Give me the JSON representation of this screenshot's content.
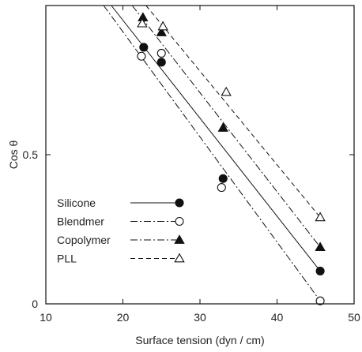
{
  "chart_data": {
    "type": "scatter",
    "title": "",
    "xlabel": "Surface tension (dyn / cm)",
    "ylabel": "Cos θ",
    "xlim": [
      10,
      50
    ],
    "ylim": [
      0,
      1.0
    ],
    "xticks": [
      10,
      20,
      30,
      40,
      50
    ],
    "yticks": [
      0,
      0.5
    ],
    "ytick_labels": [
      "0",
      "0.5"
    ],
    "grid": false,
    "legend_position": "lower-left",
    "series": [
      {
        "name": "Silicone",
        "marker": "filled-circle",
        "line_style": "solid",
        "points": [
          [
            22.7,
            0.86
          ],
          [
            25.0,
            0.81
          ],
          [
            33.0,
            0.42
          ],
          [
            45.6,
            0.11
          ]
        ],
        "fit_line": [
          [
            18.5,
            1.0
          ],
          [
            45.6,
            0.11
          ]
        ]
      },
      {
        "name": "Blendmer",
        "marker": "open-circle",
        "line_style": "dash-dot",
        "points": [
          [
            22.4,
            0.83
          ],
          [
            25.0,
            0.84
          ],
          [
            32.8,
            0.39
          ],
          [
            45.6,
            0.01
          ]
        ],
        "fit_line": [
          [
            17.5,
            1.0
          ],
          [
            45.6,
            0.01
          ]
        ]
      },
      {
        "name": "Copolymer",
        "marker": "filled-triangle",
        "line_style": "dash-dot",
        "points": [
          [
            22.6,
            0.96
          ],
          [
            25.0,
            0.91
          ],
          [
            33.0,
            0.59
          ],
          [
            45.6,
            0.19
          ]
        ],
        "fit_line": [
          [
            21.2,
            1.0
          ],
          [
            45.6,
            0.19
          ]
        ]
      },
      {
        "name": "PLL",
        "marker": "open-triangle",
        "line_style": "dashed",
        "points": [
          [
            22.5,
            0.94
          ],
          [
            25.2,
            0.93
          ],
          [
            33.4,
            0.71
          ],
          [
            45.6,
            0.29
          ]
        ],
        "fit_line": [
          [
            23.0,
            1.0
          ],
          [
            45.6,
            0.29
          ]
        ]
      }
    ]
  }
}
